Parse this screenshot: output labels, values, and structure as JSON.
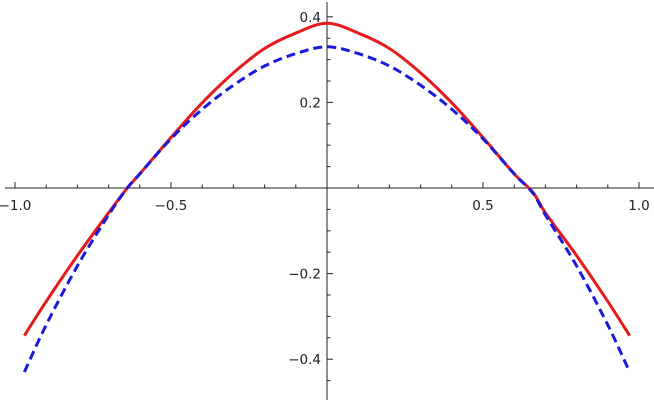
{
  "chart_data": {
    "type": "line",
    "title": "",
    "xlabel": "",
    "ylabel": "",
    "xlim": [
      -1.0,
      1.0
    ],
    "ylim": [
      -0.46,
      0.42
    ],
    "grid": false,
    "axes_origin": [
      0,
      0
    ],
    "x_ticks": [
      {
        "value": -1.0,
        "label": "-1.0"
      },
      {
        "value": -0.5,
        "label": "-0.5"
      },
      {
        "value": 0.5,
        "label": "0.5"
      },
      {
        "value": 1.0,
        "label": "1.0"
      }
    ],
    "y_ticks": [
      {
        "value": -0.4,
        "label": "-0.4"
      },
      {
        "value": -0.2,
        "label": "-0.2"
      },
      {
        "value": 0.2,
        "label": "0.2"
      },
      {
        "value": 0.4,
        "label": "0.4"
      }
    ],
    "series": [
      {
        "style": "solid",
        "color": "#e41a1c",
        "x": [
          -0.97,
          -0.9,
          -0.8,
          -0.7,
          -0.64,
          -0.6,
          -0.5,
          -0.4,
          -0.3,
          -0.2,
          -0.1,
          0.0,
          0.1,
          0.2,
          0.3,
          0.4,
          0.5,
          0.6,
          0.66,
          0.7,
          0.8,
          0.9,
          0.97
        ],
        "y": [
          -0.345,
          -0.265,
          -0.158,
          -0.058,
          0.0,
          0.033,
          0.118,
          0.199,
          0.269,
          0.326,
          0.362,
          0.385,
          0.362,
          0.326,
          0.269,
          0.199,
          0.118,
          0.033,
          -0.01,
          -0.058,
          -0.158,
          -0.265,
          -0.345
        ]
      },
      {
        "style": "dashed",
        "color": "#1a1adc",
        "x": [
          -0.97,
          -0.9,
          -0.8,
          -0.7,
          -0.64,
          -0.6,
          -0.5,
          -0.4,
          -0.3,
          -0.2,
          -0.1,
          0.0,
          0.1,
          0.2,
          0.3,
          0.4,
          0.5,
          0.6,
          0.66,
          0.7,
          0.8,
          0.9,
          0.97
        ],
        "y": [
          -0.43,
          -0.32,
          -0.182,
          -0.063,
          0.0,
          0.033,
          0.115,
          0.184,
          0.24,
          0.285,
          0.314,
          0.33,
          0.314,
          0.285,
          0.24,
          0.184,
          0.115,
          0.033,
          -0.012,
          -0.063,
          -0.182,
          -0.32,
          -0.43
        ]
      }
    ]
  }
}
